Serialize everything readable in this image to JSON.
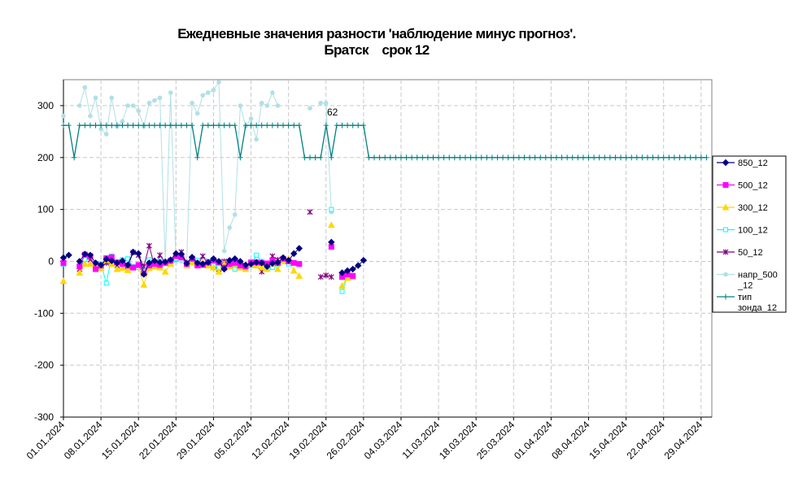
{
  "chart_data": {
    "type": "line",
    "title": "Ежедневные значения разности 'наблюдение минус прогноз'.",
    "subtitle": "Братск    срок 12",
    "xlabel": "",
    "ylabel": "",
    "ylim": [
      -300,
      350
    ],
    "yticks": [
      "300",
      "200",
      "100",
      "0",
      "-100",
      "-200",
      "-300"
    ],
    "x_tick_labels": [
      "01.01.2024",
      "08.01.2024",
      "15.01.2024",
      "22.01.2024",
      "29.01.2024",
      "05.02.2024",
      "12.02.2024",
      "19.02.2024",
      "26.02.2024",
      "04.03.2024",
      "11.03.2024",
      "18.03.2024",
      "25.03.2024",
      "01.04.2024",
      "08.04.2024",
      "15.04.2024",
      "22.04.2024",
      "29.04.2024"
    ],
    "grid": true,
    "legend_position": "right",
    "annotation": "62",
    "series": [
      {
        "name": "850_12",
        "color": "#000080",
        "marker": "diamond",
        "values": [
          7,
          12,
          null,
          0,
          14,
          12,
          -3,
          -7,
          4,
          1,
          -3,
          1,
          -7,
          18,
          15,
          -25,
          -3,
          1,
          -2,
          -1,
          3,
          15,
          14,
          -4,
          8,
          -3,
          -5,
          -2,
          5,
          0,
          -15,
          2,
          5,
          0,
          -7,
          -5,
          -2,
          -3,
          -10,
          -4,
          -2,
          7,
          2,
          15,
          25,
          null,
          null,
          null,
          null,
          null,
          37,
          null,
          -22,
          -18,
          -15,
          -8,
          2
        ]
      },
      {
        "name": "500_12",
        "color": "#FF00FF",
        "marker": "square",
        "values": [
          -3,
          null,
          null,
          -10,
          13,
          10,
          -15,
          -8,
          6,
          8,
          -2,
          -5,
          -8,
          -12,
          -7,
          -23,
          -8,
          -5,
          -7,
          -3,
          1,
          10,
          8,
          -5,
          5,
          -8,
          -7,
          -2,
          2,
          -2,
          -12,
          -5,
          -3,
          -8,
          -10,
          -2,
          -2,
          -3,
          -4,
          2,
          -3,
          5,
          0,
          -3,
          -5,
          null,
          null,
          null,
          null,
          null,
          28,
          null,
          -30,
          -25,
          -28,
          null,
          null
        ]
      },
      {
        "name": "300_12",
        "color": "#FFD700",
        "marker": "triangle",
        "values": [
          -38,
          null,
          null,
          -22,
          -5,
          -5,
          -8,
          -13,
          2,
          -5,
          -15,
          -13,
          -17,
          -12,
          -8,
          -45,
          -13,
          -10,
          -12,
          -20,
          -5,
          12,
          10,
          -8,
          -2,
          -5,
          -3,
          -8,
          -12,
          -20,
          -5,
          -10,
          -5,
          -12,
          -15,
          -5,
          -8,
          -12,
          -15,
          -5,
          -15,
          0,
          5,
          -18,
          -28,
          null,
          null,
          null,
          null,
          null,
          70,
          null,
          -47,
          -32,
          -30,
          null,
          null
        ]
      },
      {
        "name": "100_12",
        "color": "#00FFFF",
        "marker": "square-open",
        "values": [
          -5,
          null,
          null,
          -8,
          4,
          10,
          -12,
          -5,
          -42,
          10,
          -3,
          3,
          5,
          -10,
          -12,
          -20,
          3,
          -5,
          0,
          -3,
          2,
          5,
          8,
          -5,
          -3,
          2,
          -5,
          0,
          -8,
          -12,
          -12,
          -8,
          -15,
          -10,
          -15,
          -8,
          12,
          0,
          -15,
          -12,
          -5,
          3,
          -5,
          -3,
          -5,
          null,
          null,
          null,
          null,
          null,
          100,
          null,
          -58,
          -30,
          -30,
          null,
          null
        ]
      },
      {
        "name": "50_12",
        "color": "#800080",
        "marker": "star",
        "values": [
          -5,
          null,
          null,
          -15,
          7,
          3,
          -5,
          -10,
          -3,
          -5,
          -8,
          -5,
          -10,
          17,
          12,
          -10,
          30,
          -10,
          12,
          -2,
          -5,
          5,
          18,
          -3,
          5,
          -8,
          10,
          -5,
          -10,
          -15,
          0,
          -3,
          -8,
          -10,
          -15,
          -5,
          -8,
          -20,
          -10,
          10,
          3,
          null,
          null,
          null,
          null,
          null,
          95,
          null,
          -30,
          -27,
          -30,
          null,
          null
        ]
      },
      {
        "name": "напр_500_12",
        "color": "#B0E0E6",
        "marker": "dot",
        "values": [
          280,
          null,
          null,
          300,
          335,
          280,
          315,
          255,
          245,
          315,
          260,
          270,
          300,
          300,
          290,
          260,
          305,
          310,
          315,
          0,
          325,
          0,
          0,
          0,
          305,
          285,
          320,
          325,
          330,
          345,
          20,
          65,
          90,
          300,
          260,
          275,
          235,
          305,
          300,
          325,
          300,
          null,
          null,
          null,
          null,
          null,
          295,
          null,
          305,
          305,
          95,
          null,
          null
        ]
      },
      {
        "name": "тип зонда_12",
        "color": "#008080",
        "marker": "plus",
        "values": [
          262,
          262,
          200,
          262,
          262,
          262,
          262,
          262,
          262,
          262,
          262,
          262,
          262,
          262,
          262,
          262,
          262,
          262,
          262,
          262,
          262,
          262,
          262,
          262,
          262,
          200,
          262,
          262,
          262,
          262,
          262,
          262,
          262,
          200,
          262,
          262,
          262,
          262,
          262,
          262,
          262,
          262,
          262,
          262,
          262,
          200,
          200,
          200,
          200,
          262,
          200,
          262,
          262,
          262,
          262,
          262,
          262,
          200,
          200,
          200,
          200,
          200,
          200,
          200,
          200,
          200,
          200,
          200,
          200,
          200,
          200,
          200,
          200,
          200,
          200,
          200,
          200,
          200,
          200,
          200,
          200,
          200,
          200,
          200,
          200,
          200,
          200,
          200,
          200,
          200,
          200,
          200,
          200,
          200,
          200,
          200,
          200,
          200,
          200,
          200,
          200,
          200,
          200,
          200,
          200,
          200,
          200,
          200,
          200,
          200,
          200,
          200,
          200,
          200,
          200,
          200,
          200,
          200,
          200,
          200,
          200
        ]
      }
    ]
  }
}
